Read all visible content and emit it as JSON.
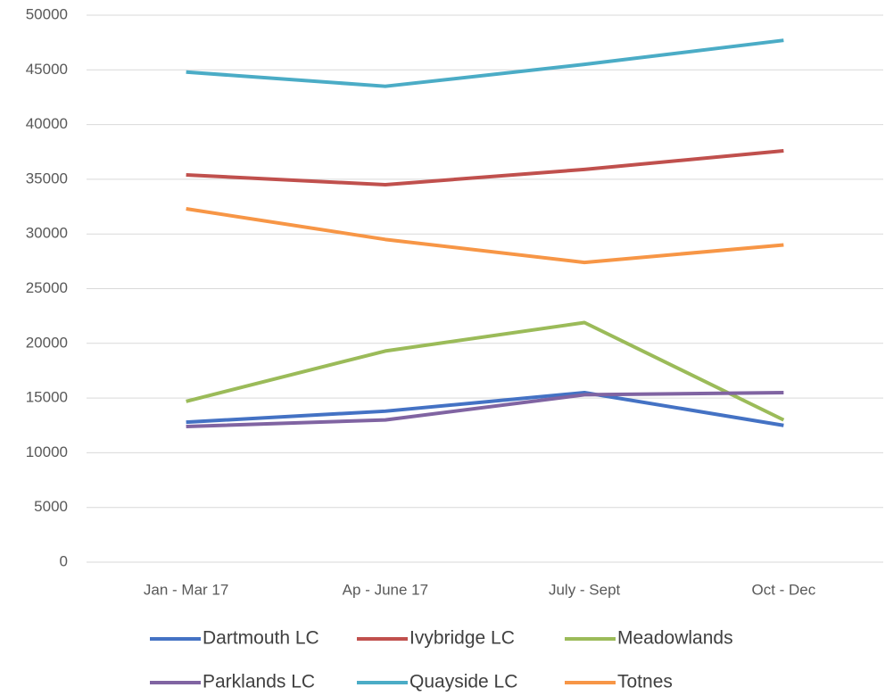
{
  "chart_data": {
    "type": "line",
    "categories": [
      "Jan - Mar 17",
      "Ap - June 17",
      "July - Sept",
      "Oct - Dec"
    ],
    "series": [
      {
        "name": "Dartmouth LC",
        "color": "#4472c4",
        "values": [
          12800,
          13800,
          15500,
          12500
        ]
      },
      {
        "name": "Ivybridge LC",
        "color": "#c0504d",
        "values": [
          35400,
          34500,
          35900,
          37600
        ]
      },
      {
        "name": "Meadowlands",
        "color": "#9bbb59",
        "values": [
          14700,
          19300,
          21900,
          13000
        ]
      },
      {
        "name": "Parklands LC",
        "color": "#8064a2",
        "values": [
          12400,
          13000,
          15300,
          15500
        ]
      },
      {
        "name": "Quayside LC",
        "color": "#4bacc6",
        "values": [
          44800,
          43500,
          45500,
          47700
        ]
      },
      {
        "name": "Totnes",
        "color": "#f79646",
        "values": [
          32300,
          29500,
          27400,
          29000
        ]
      }
    ],
    "ylim": [
      0,
      50000
    ],
    "yticks": [
      0,
      5000,
      10000,
      15000,
      20000,
      25000,
      30000,
      35000,
      40000,
      45000,
      50000
    ],
    "grid": true,
    "legend": "bottom"
  }
}
